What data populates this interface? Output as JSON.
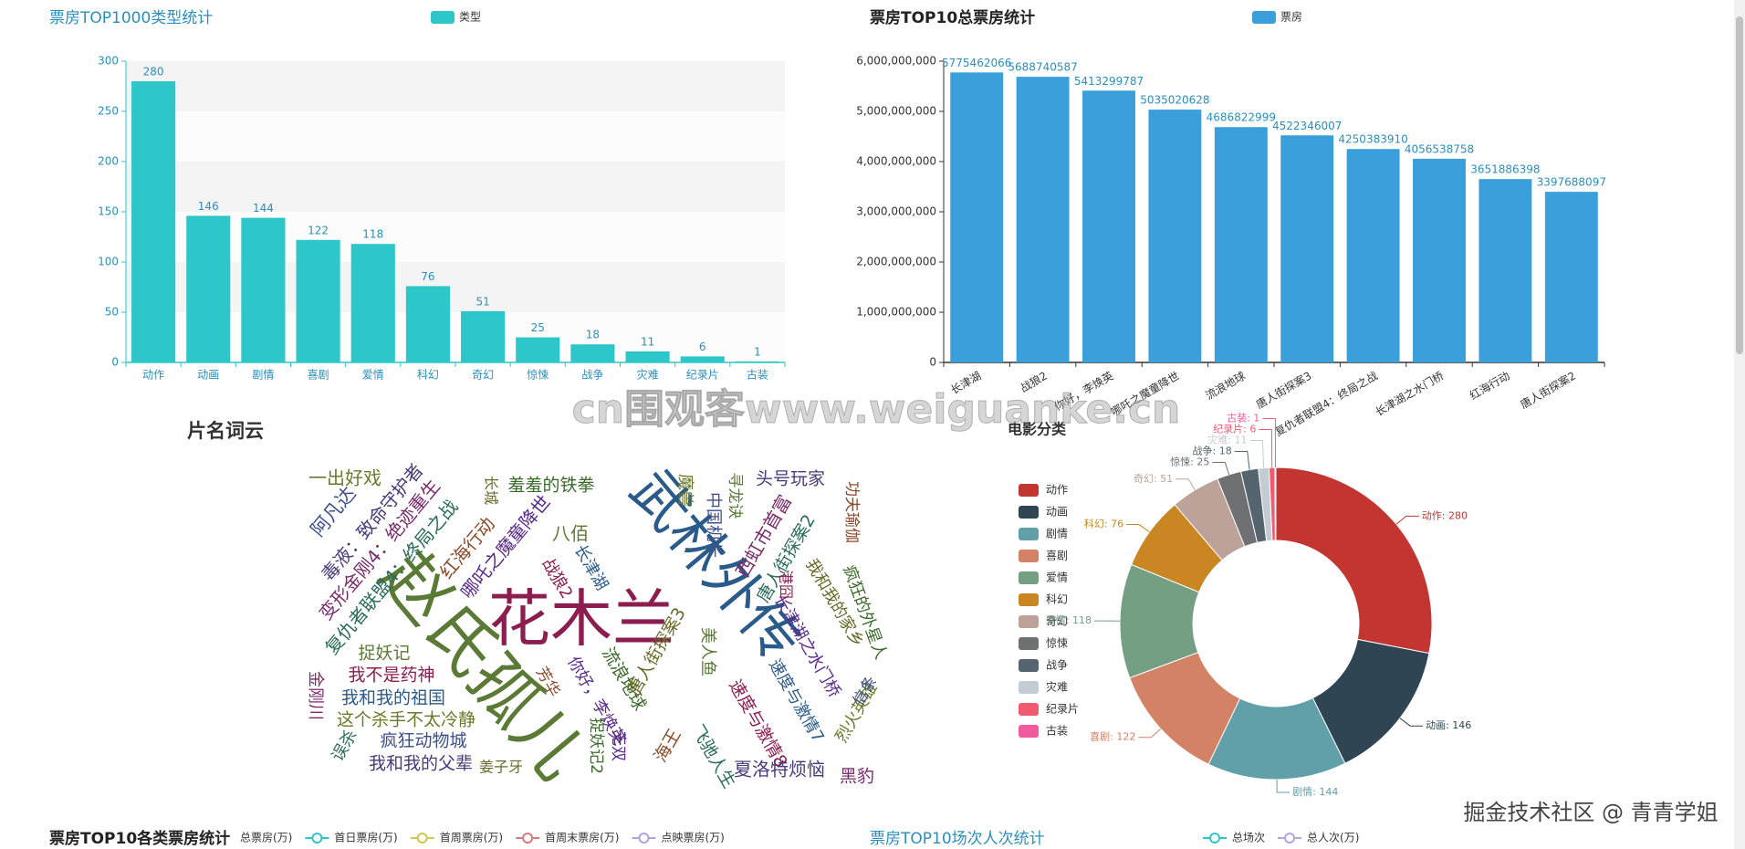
{
  "watermark": "cn围观客www.weiguanke.cn",
  "credit": "掘金技术社区 @ 青青学姐",
  "chart_data": [
    {
      "type": "bar",
      "title": "票房TOP1000类型统计",
      "categories": [
        "动作",
        "动画",
        "剧情",
        "喜剧",
        "爱情",
        "科幻",
        "奇幻",
        "惊悚",
        "战争",
        "灾难",
        "纪录片",
        "古装"
      ],
      "series": [
        {
          "name": "类型",
          "color": "#2ec7c9",
          "values": [
            280,
            146,
            144,
            122,
            118,
            76,
            51,
            25,
            18,
            11,
            6,
            1
          ]
        }
      ],
      "ylim": [
        0,
        300
      ],
      "yticks": [
        0,
        50,
        100,
        150,
        200,
        250,
        300
      ],
      "split_area": true,
      "data_labels": true
    },
    {
      "type": "bar",
      "title": "票房TOP10总票房统计",
      "categories": [
        "长津湖",
        "战狼2",
        "你好，李焕英",
        "哪吒之魔童降世",
        "流浪地球",
        "唐人街探案3",
        "复仇者联盟4：终局之战",
        "长津湖之水门桥",
        "红海行动",
        "唐人街探案2"
      ],
      "series": [
        {
          "name": "票房",
          "color": "#3a9fdb",
          "values": [
            5775462066,
            5688740587,
            5413299787,
            5035020628,
            4686822999,
            4522346007,
            4250383910,
            4056538758,
            3651886398,
            3397688097
          ]
        }
      ],
      "ylim": [
        0,
        6000000000
      ],
      "yticks": [
        0,
        {
          "value": 1000000000,
          "label": "1,000,000,000"
        },
        {
          "value": 2000000000,
          "label": "2,000,000,000"
        },
        {
          "value": 3000000000,
          "label": "3,000,000,000"
        },
        {
          "value": 4000000000,
          "label": "4,000,000,000"
        },
        {
          "value": 5000000000,
          "label": "5,000,000,000"
        },
        {
          "value": 6000000000,
          "label": "6,000,000,000"
        }
      ],
      "split_area": false,
      "data_labels": true
    },
    {
      "type": "wordcloud",
      "title": "片名词云",
      "words": [
        "赵氏孤儿",
        "花木兰",
        "武林外传",
        "一出好戏",
        "阿凡达",
        "毒液：致命守护者",
        "变形金刚4：绝迹重生",
        "复仇者联盟4：终局之战",
        "红海行动",
        "哪吒之魔童降世",
        "羞羞的铁拳",
        "长城",
        "八佰",
        "战狼2",
        "长津湖",
        "魔兽",
        "中国机长",
        "头号玩家",
        "西虹市首富",
        "唐人街探案2",
        "功夫瑜伽",
        "长津湖之水门桥",
        "疯狂的外星人",
        "我和我的家乡",
        "捉妖记",
        "我不是药神",
        "我和我的祖国",
        "这个杀手不太冷静",
        "疯狂动物城",
        "我和我的父辈",
        "金刚川",
        "误杀",
        "芳华",
        "你好，李焕英",
        "流浪地球",
        "唐人街探案3",
        "美人鱼",
        "速度与激情8",
        "速度与激情7",
        "烈火英雄",
        "信条",
        "夏洛特烦恼",
        "黑豹",
        "飞驰人生",
        "海王",
        "无双",
        "捉妖记2",
        "姜子牙",
        "寻龙诀",
        "港囧"
      ]
    },
    {
      "type": "pie",
      "title": "电影分类",
      "categories": [
        "动作",
        "动画",
        "剧情",
        "喜剧",
        "爱情",
        "科幻",
        "奇幻",
        "惊悚",
        "战争",
        "灾难",
        "纪录片",
        "古装"
      ],
      "values": [
        280,
        146,
        144,
        122,
        118,
        76,
        51,
        25,
        18,
        11,
        6,
        1
      ],
      "value_labels": [
        "动作: 280",
        "动画: 146",
        "剧情: 144",
        "喜剧: 122",
        "爱情: 118",
        "科幻: 76",
        "奇幻: 51",
        "惊悚: 25",
        "战争: 18",
        "灾难: 11",
        "纪录片: 6",
        "古装: 1"
      ],
      "colors": [
        "#c23531",
        "#2f4554",
        "#61a0a8",
        "#d48265",
        "#749f83",
        "#ca8622",
        "#bda29a",
        "#6e7074",
        "#546570",
        "#c4ccd3",
        "#f05b72",
        "#ef5b9c"
      ]
    },
    {
      "type": "line",
      "title": "票房TOP10各类票房统计",
      "series": [
        {
          "name": "总票房(万)"
        },
        {
          "name": "首日票房(万)",
          "color": "#2ec7c9"
        },
        {
          "name": "首周票房(万)",
          "color": "#c9c94a"
        },
        {
          "name": "首周末票房(万)",
          "color": "#d87a80"
        },
        {
          "name": "点映票房(万)",
          "color": "#b6a2de"
        }
      ]
    },
    {
      "type": "line",
      "title": "票房TOP10场次人次统计",
      "series": [
        {
          "name": "总场次",
          "color": "#2ec7c9"
        },
        {
          "name": "总人次(万)",
          "color": "#b6a2de"
        }
      ]
    }
  ]
}
